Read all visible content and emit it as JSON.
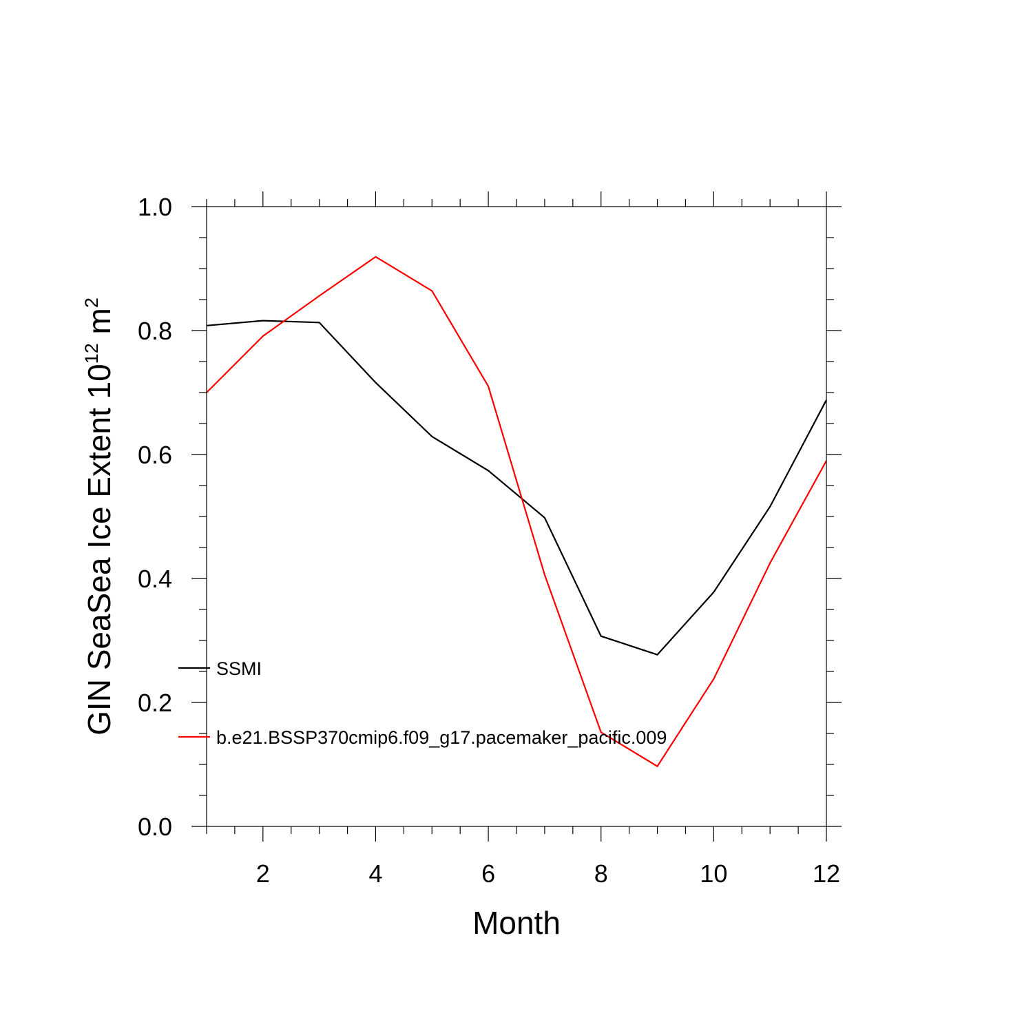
{
  "chart_data": {
    "type": "line",
    "title": "",
    "xlabel": "Month",
    "ylabel": {
      "base": "GIN SeaSea Ice Extent 10",
      "exponent1": "12",
      "unit": " m",
      "exponent2": "2"
    },
    "xlim": [
      1,
      12
    ],
    "ylim": [
      0.0,
      1.0
    ],
    "x_ticks": [
      "2",
      "4",
      "6",
      "8",
      "10",
      "12"
    ],
    "x_tick_values": [
      2,
      4,
      6,
      8,
      10,
      12
    ],
    "y_ticks": [
      "0.0",
      "0.2",
      "0.4",
      "0.6",
      "0.8",
      "1.0"
    ],
    "y_tick_values": [
      0.0,
      0.2,
      0.4,
      0.6,
      0.8,
      1.0
    ],
    "grid": false,
    "legend_placement": "left-lower-inside",
    "x": [
      1,
      2,
      3,
      4,
      5,
      6,
      7,
      8,
      9,
      10,
      11,
      12
    ],
    "series": [
      {
        "name": "SSMI",
        "color": "#000000",
        "values": [
          0.808,
          0.816,
          0.813,
          0.716,
          0.629,
          0.574,
          0.498,
          0.307,
          0.277,
          0.378,
          0.516,
          0.688
        ]
      },
      {
        "name": "b.e21.BSSP370cmip6.f09_g17.pacemaker_pacific.009",
        "color": "#ff0000",
        "values": [
          0.7,
          0.791,
          0.856,
          0.919,
          0.864,
          0.71,
          0.406,
          0.152,
          0.097,
          0.238,
          0.425,
          0.59
        ]
      }
    ]
  }
}
